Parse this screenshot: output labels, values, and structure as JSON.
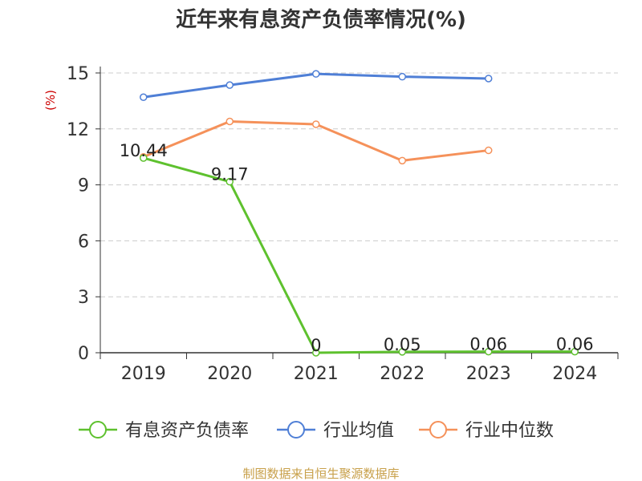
{
  "chart_data": {
    "type": "line",
    "title": "近年来有息资产负债率情况(%)",
    "ylabel": "(%)",
    "categories": [
      "2019",
      "2020",
      "2021",
      "2022",
      "2023",
      "2024"
    ],
    "ylim": [
      0,
      15
    ],
    "yticks": [
      0,
      3,
      6,
      9,
      12,
      15
    ],
    "grid": true,
    "legend_position": "bottom",
    "series": [
      {
        "name": "有息资产负债率",
        "color": "#5ec12e",
        "values": [
          10.44,
          9.17,
          0,
          0.05,
          0.06,
          0.06
        ],
        "labels": [
          "10.44",
          "9.17",
          "0",
          "0.05",
          "0.06",
          "0.06"
        ],
        "show_labels": true
      },
      {
        "name": "行业均值",
        "color": "#4f7fd6",
        "values": [
          13.7,
          14.35,
          14.95,
          14.8,
          14.7,
          null
        ],
        "show_labels": false
      },
      {
        "name": "行业中位数",
        "color": "#f5915a",
        "values": [
          10.5,
          12.4,
          12.25,
          10.3,
          10.85,
          null
        ],
        "show_labels": false
      }
    ]
  },
  "footer": "制图数据来自恒生聚源数据库"
}
